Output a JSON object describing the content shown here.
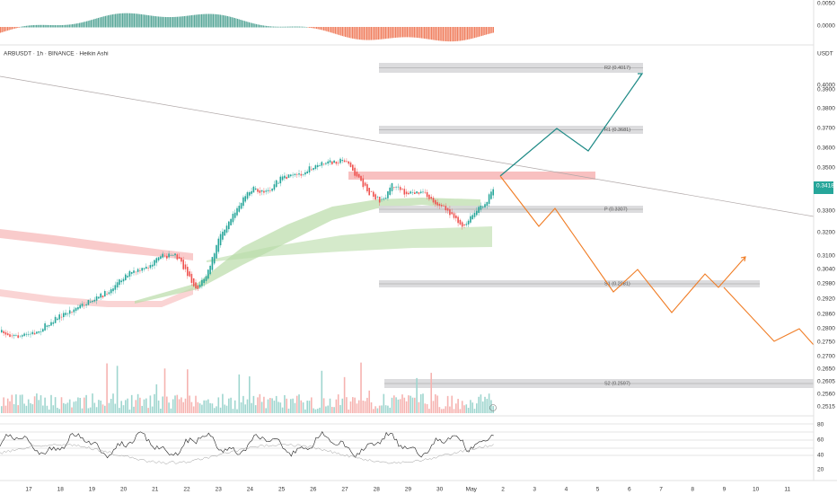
{
  "header": {
    "symbol": "ARBUSDT · 1h · BINANCE · Heikin Ashi",
    "currency": "USDT",
    "current_price": "0.3418"
  },
  "top_axis": [
    "0.0050",
    "0.0000"
  ],
  "price_axis": [
    "0.4000",
    "0.3900",
    "0.3800",
    "0.3700",
    "0.3600",
    "0.3500",
    "0.3300",
    "0.3200",
    "0.3100",
    "0.3040",
    "0.2980",
    "0.2920",
    "0.2860",
    "0.2800",
    "0.2750",
    "0.2700",
    "0.2650",
    "0.2605",
    "0.2560",
    "0.2515"
  ],
  "rsi_axis": [
    "80",
    "60",
    "40",
    "20"
  ],
  "pivots": [
    "R2 (0.4017)",
    "R1 (0.3681)",
    "P (0.3307)",
    "S1 (0.2981)",
    "S2 (0.2597)"
  ],
  "dates": [
    "17",
    "18",
    "19",
    "20",
    "21",
    "22",
    "23",
    "24",
    "25",
    "26",
    "27",
    "28",
    "29",
    "30",
    "May",
    "2",
    "3",
    "4",
    "5",
    "6",
    "7",
    "8",
    "9",
    "10",
    "11"
  ]
}
